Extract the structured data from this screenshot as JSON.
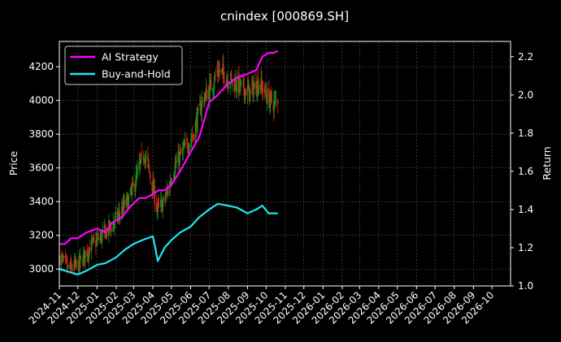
{
  "chart_data": {
    "type": "line",
    "title": "cnindex [000869.SH]",
    "xlabel": "",
    "ylabel": "Price",
    "y2label": "Return",
    "grid": true,
    "legend_position": "top-left",
    "x_ticks": [
      "2024-11",
      "2024-12",
      "2025-01",
      "2025-02",
      "2025-03",
      "2025-04",
      "2025-05",
      "2025-06",
      "2025-07",
      "2025-08",
      "2025-09",
      "2025-10",
      "2025-11",
      "2025-12",
      "2026-01",
      "2026-02",
      "2026-03",
      "2026-04",
      "2026-05",
      "2026-06",
      "2026-07",
      "2026-08",
      "2026-09",
      "2026-10"
    ],
    "xlim": [
      "2024-11-01",
      "2026-10-31"
    ],
    "y_ticks": [
      3000,
      3200,
      3400,
      3600,
      3800,
      4000,
      4200
    ],
    "ylim": [
      2900,
      4350
    ],
    "y2_ticks": [
      1.0,
      1.2,
      1.4,
      1.6,
      1.8,
      2.0,
      2.2
    ],
    "y2lim": [
      1.0,
      2.28
    ],
    "colors": {
      "ai": "#ff00ff",
      "bh": "#22e5f2",
      "up": "#1b8f1b",
      "down": "#e0201a"
    },
    "price_ohlc_anchors": {
      "x": [
        "2024-11-01",
        "2024-11-15",
        "2024-12-01",
        "2024-12-20",
        "2025-01-10",
        "2025-01-25",
        "2025-02-10",
        "2025-02-25",
        "2025-03-10",
        "2025-03-18",
        "2025-03-28",
        "2025-04-03",
        "2025-04-08",
        "2025-04-20",
        "2025-05-05",
        "2025-05-20",
        "2025-06-05",
        "2025-06-20",
        "2025-07-01",
        "2025-07-15",
        "2025-07-25",
        "2025-08-05",
        "2025-08-20",
        "2025-09-05",
        "2025-09-20",
        "2025-10-01",
        "2025-10-13",
        "2025-10-20"
      ],
      "close": [
        3070,
        3000,
        3020,
        3130,
        3200,
        3260,
        3350,
        3440,
        3600,
        3690,
        3550,
        3450,
        3350,
        3400,
        3600,
        3700,
        3800,
        4000,
        4060,
        4180,
        4150,
        4120,
        4080,
        4050,
        4110,
        4030,
        3980,
        4010
      ]
    },
    "series": [
      {
        "name": "AI Strategy",
        "x": [
          "2024-11-01",
          "2024-11-10",
          "2024-11-20",
          "2024-12-01",
          "2024-12-15",
          "2025-01-01",
          "2025-01-15",
          "2025-01-25",
          "2025-02-10",
          "2025-02-25",
          "2025-03-10",
          "2025-03-20",
          "2025-04-01",
          "2025-04-10",
          "2025-04-20",
          "2025-05-01",
          "2025-05-15",
          "2025-06-01",
          "2025-06-15",
          "2025-07-01",
          "2025-07-15",
          "2025-08-01",
          "2025-08-15",
          "2025-09-01",
          "2025-09-15",
          "2025-09-25",
          "2025-10-05",
          "2025-10-13",
          "2025-10-20"
        ],
        "values": [
          1.22,
          1.22,
          1.25,
          1.25,
          1.28,
          1.3,
          1.28,
          1.33,
          1.36,
          1.42,
          1.46,
          1.46,
          1.48,
          1.5,
          1.5,
          1.53,
          1.6,
          1.7,
          1.78,
          1.96,
          2.0,
          2.06,
          2.09,
          2.11,
          2.13,
          2.2,
          2.22,
          2.22,
          2.23
        ]
      },
      {
        "name": "Buy-and-Hold",
        "x": [
          "2024-11-01",
          "2024-11-10",
          "2024-11-20",
          "2024-12-01",
          "2024-12-15",
          "2025-01-01",
          "2025-01-15",
          "2025-02-01",
          "2025-02-15",
          "2025-03-01",
          "2025-03-15",
          "2025-04-01",
          "2025-04-05",
          "2025-04-09",
          "2025-04-20",
          "2025-05-01",
          "2025-05-15",
          "2025-06-01",
          "2025-06-15",
          "2025-07-01",
          "2025-07-15",
          "2025-08-01",
          "2025-08-15",
          "2025-09-01",
          "2025-09-15",
          "2025-09-25",
          "2025-10-05",
          "2025-10-13",
          "2025-10-20"
        ],
        "values": [
          1.09,
          1.08,
          1.07,
          1.06,
          1.08,
          1.11,
          1.12,
          1.15,
          1.19,
          1.22,
          1.24,
          1.26,
          1.2,
          1.13,
          1.2,
          1.24,
          1.28,
          1.31,
          1.36,
          1.4,
          1.43,
          1.42,
          1.41,
          1.38,
          1.4,
          1.42,
          1.38,
          1.38,
          1.38
        ]
      }
    ]
  }
}
